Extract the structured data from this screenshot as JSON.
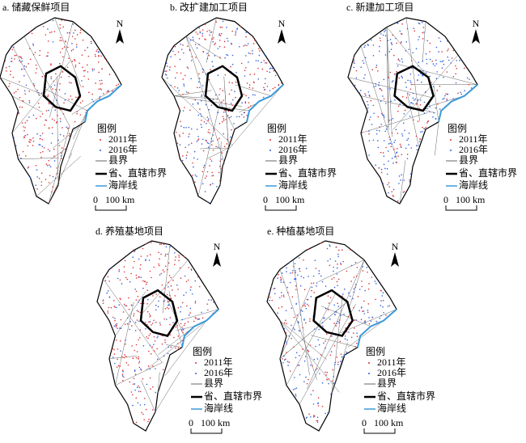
{
  "panels": [
    {
      "title": "a. 储藏保鲜项目"
    },
    {
      "title": "b. 改扩建加工项目"
    },
    {
      "title": "c. 新建加工项目"
    },
    {
      "title": "d. 养殖基地项目"
    },
    {
      "title": "e. 种植基地项目"
    }
  ],
  "legend": {
    "title": "图例",
    "items": [
      "2011年",
      "2016年",
      "县界",
      "省、直辖市界",
      "海岸线"
    ]
  },
  "scale": {
    "start": "0",
    "end": "100 km"
  },
  "north": "N"
}
